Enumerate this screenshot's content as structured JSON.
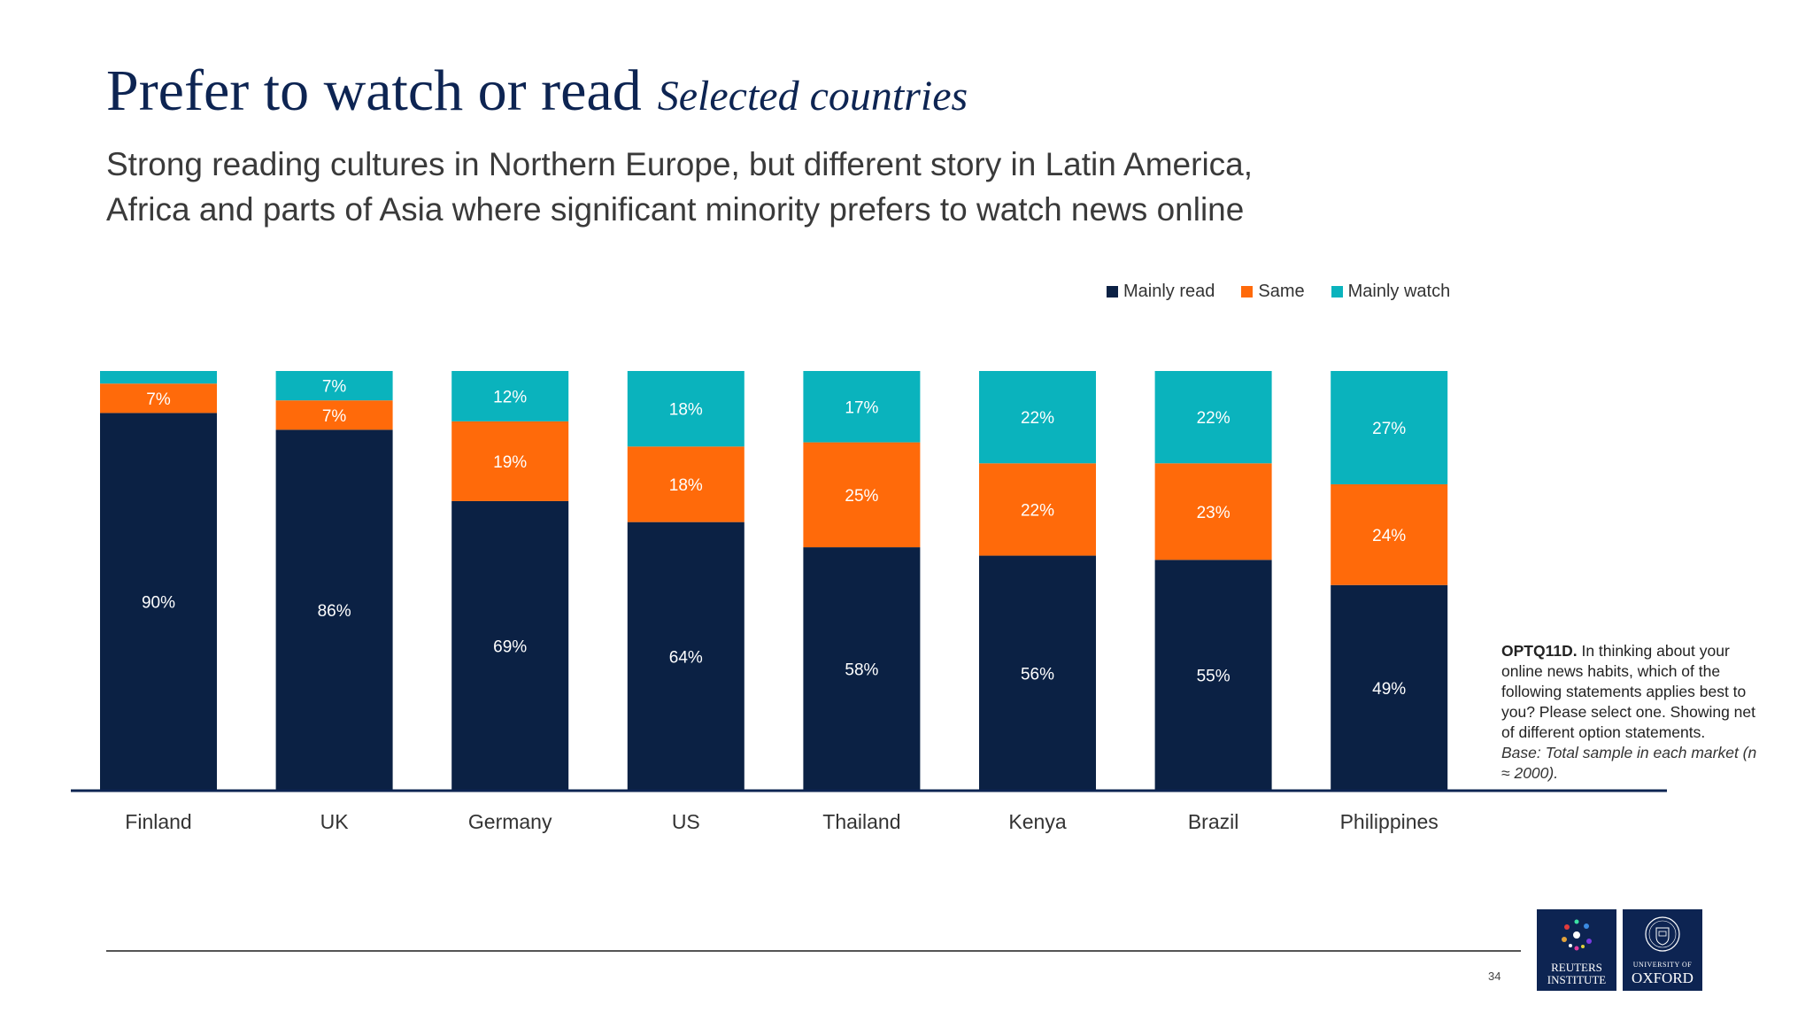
{
  "header": {
    "title": "Prefer to watch or read",
    "title_italic": "Selected countries",
    "subtitle_line1": "Strong reading cultures in Northern Europe, but different story in Latin America,",
    "subtitle_line2": "Africa and parts of Asia where significant minority prefers to watch news online"
  },
  "legend": [
    {
      "label": "Mainly read",
      "color": "#0b2144"
    },
    {
      "label": "Same",
      "color": "#ff6a0a"
    },
    {
      "label": "Mainly watch",
      "color": "#0ab3bd"
    }
  ],
  "chart_data": {
    "type": "bar",
    "stacked": true,
    "categories": [
      "Finland",
      "UK",
      "Germany",
      "US",
      "Thailand",
      "Kenya",
      "Brazil",
      "Philippines"
    ],
    "series": [
      {
        "name": "Mainly read",
        "color": "#0b2144",
        "values": [
          90,
          86,
          69,
          64,
          58,
          56,
          55,
          49
        ],
        "labels": [
          "90%",
          "86%",
          "69%",
          "64%",
          "58%",
          "56%",
          "55%",
          "49%"
        ]
      },
      {
        "name": "Same",
        "color": "#ff6a0a",
        "values": [
          7,
          7,
          19,
          18,
          25,
          22,
          23,
          24
        ],
        "labels": [
          "7%",
          "7%",
          "19%",
          "18%",
          "25%",
          "22%",
          "23%",
          "24%"
        ]
      },
      {
        "name": "Mainly watch",
        "color": "#0ab3bd",
        "values": [
          3,
          7,
          12,
          18,
          17,
          22,
          22,
          27
        ],
        "labels": [
          "",
          "7%",
          "12%",
          "18%",
          "17%",
          "22%",
          "22%",
          "27%"
        ]
      }
    ],
    "ylim": [
      0,
      100
    ],
    "grid": false,
    "legend_position": "top-right"
  },
  "note": {
    "bold": "OPTQ11D.",
    "text": "In thinking about your online news habits, which of the following statements applies best to you? Please select one. Showing net of different option statements.",
    "base": "Base: Total sample in each market (n ≈ 2000)."
  },
  "footer": {
    "page_number": "34",
    "reuters_line1": "REUTERS",
    "reuters_line2": "INSTITUTE",
    "oxford_line1": "UNIVERSITY OF",
    "oxford_line2": "OXFORD"
  }
}
